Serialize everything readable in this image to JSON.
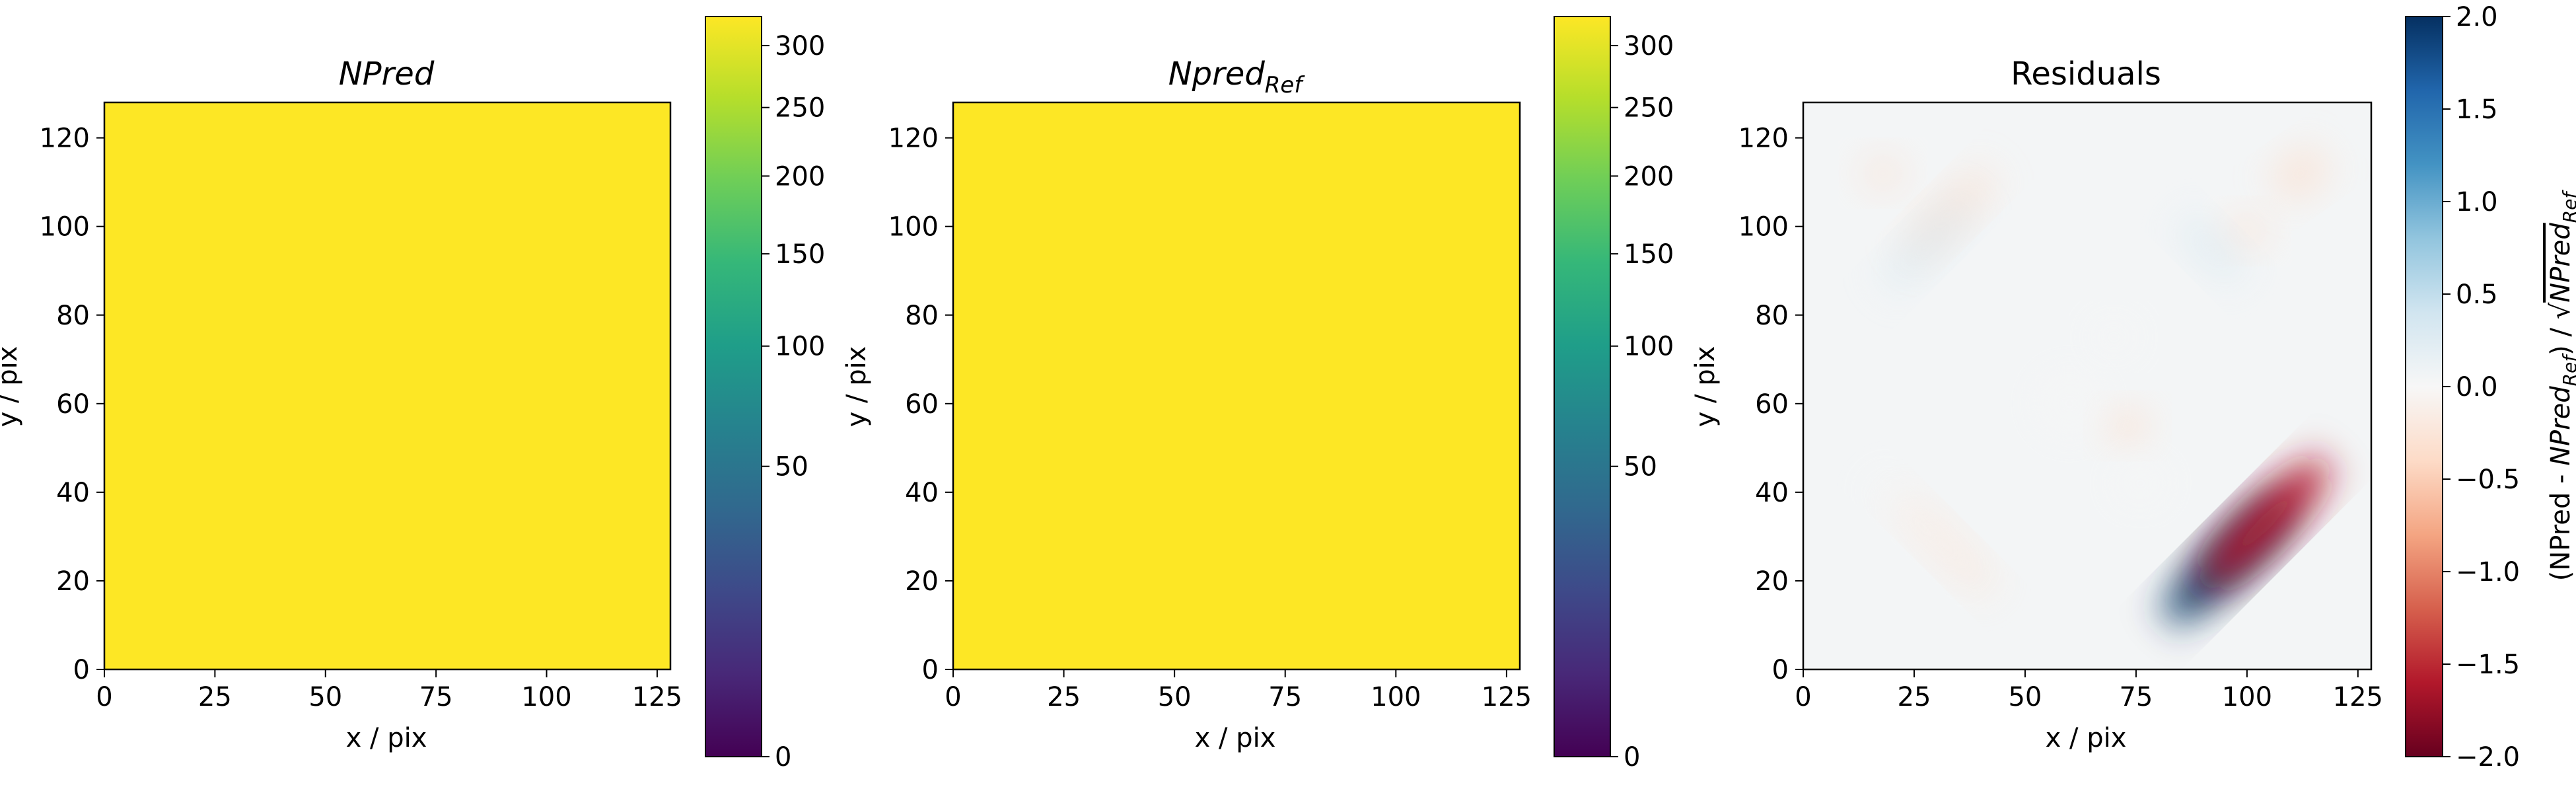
{
  "chart_data": [
    {
      "type": "heatmap",
      "title": "NPred",
      "xlabel": "x / pix",
      "ylabel": "y / pix",
      "xlim": [
        0,
        128
      ],
      "ylim": [
        0,
        128
      ],
      "x_ticks": [
        0,
        25,
        50,
        75,
        100,
        125
      ],
      "y_ticks": [
        0,
        20,
        40,
        60,
        80,
        100,
        120
      ],
      "colormap": "viridis",
      "color_scale": "sqrt",
      "colorbar_range": [
        0,
        325
      ],
      "colorbar_ticks": [
        0,
        50,
        100,
        150,
        200,
        250,
        300
      ],
      "fill_value_approx": 325,
      "fill_color": "#fde725"
    },
    {
      "type": "heatmap",
      "title": "Npred",
      "title_subscript": "Ref",
      "xlabel": "x / pix",
      "ylabel": "y / pix",
      "xlim": [
        0,
        128
      ],
      "ylim": [
        0,
        128
      ],
      "x_ticks": [
        0,
        25,
        50,
        75,
        100,
        125
      ],
      "y_ticks": [
        0,
        20,
        40,
        60,
        80,
        100,
        120
      ],
      "colormap": "viridis",
      "color_scale": "sqrt",
      "colorbar_range": [
        0,
        325
      ],
      "colorbar_ticks": [
        0,
        50,
        100,
        150,
        200,
        250,
        300
      ],
      "fill_value_approx": 325,
      "fill_color": "#fde725"
    },
    {
      "type": "heatmap",
      "title": "Residuals",
      "xlabel": "x / pix",
      "ylabel": "y / pix",
      "xlim": [
        0,
        128
      ],
      "ylim": [
        0,
        128
      ],
      "x_ticks": [
        0,
        25,
        50,
        75,
        100,
        125
      ],
      "y_ticks": [
        0,
        20,
        40,
        60,
        80,
        100,
        120
      ],
      "colormap": "RdBu",
      "colorbar_range": [
        -2.0,
        2.0
      ],
      "colorbar_ticks": [
        -2.0,
        -1.5,
        -1.0,
        -0.5,
        0.0,
        0.5,
        1.0,
        1.5,
        2.0
      ],
      "colorbar_tick_labels": [
        "−2.0",
        "−1.5",
        "−1.0",
        "−0.5",
        "0.0",
        "0.5",
        "1.0",
        "1.5",
        "2.0"
      ],
      "colorbar_label_parts": {
        "p1": "(NPred - ",
        "p2": "NPred",
        "p3": "Ref",
        "p4": ") / √",
        "p5": "NPred",
        "p6": "Ref"
      },
      "features": [
        {
          "x": 96,
          "y": 25,
          "value": 1.9,
          "sx": 20,
          "sy": 5,
          "angle_deg": -45
        },
        {
          "x": 104,
          "y": 33,
          "value": -1.5,
          "sx": 20,
          "sy": 5,
          "angle_deg": -45
        },
        {
          "x": 33,
          "y": 103,
          "value": -0.5,
          "sx": 14,
          "sy": 4,
          "angle_deg": -45
        },
        {
          "x": 28,
          "y": 96,
          "value": 0.35,
          "sx": 14,
          "sy": 4,
          "angle_deg": -45
        },
        {
          "x": 18,
          "y": 112,
          "value": -0.3,
          "sx": 5,
          "sy": 4,
          "angle_deg": 0
        },
        {
          "x": 112,
          "y": 112,
          "value": -0.5,
          "sx": 7,
          "sy": 5,
          "angle_deg": -35
        },
        {
          "x": 100,
          "y": 99,
          "value": -0.3,
          "sx": 5,
          "sy": 4,
          "angle_deg": 0
        },
        {
          "x": 92,
          "y": 95,
          "value": 0.25,
          "sx": 10,
          "sy": 4,
          "angle_deg": 45
        },
        {
          "x": 73,
          "y": 55,
          "value": -0.55,
          "sx": 5,
          "sy": 4,
          "angle_deg": 0
        },
        {
          "x": 32,
          "y": 28,
          "value": -0.25,
          "sx": 16,
          "sy": 3.5,
          "angle_deg": 45
        },
        {
          "x": 27,
          "y": 32,
          "value": 0.15,
          "sx": 16,
          "sy": 3.5,
          "angle_deg": 45
        },
        {
          "x": 70,
          "y": 75,
          "value": -0.15,
          "sx": 5,
          "sy": 4,
          "angle_deg": 0
        },
        {
          "x": 60,
          "y": 60,
          "value": 0.1,
          "sx": 8,
          "sy": 8,
          "angle_deg": 0
        },
        {
          "x": 76,
          "y": 42,
          "value": -0.12,
          "sx": 6,
          "sy": 5,
          "angle_deg": 0
        }
      ]
    }
  ]
}
